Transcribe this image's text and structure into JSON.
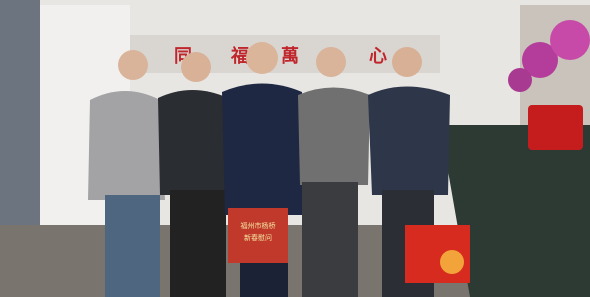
{
  "scene": {
    "sign": [
      "同",
      "福",
      "萬",
      "心"
    ],
    "bag_text": [
      "福州市杨桥",
      "新春慰问"
    ]
  }
}
